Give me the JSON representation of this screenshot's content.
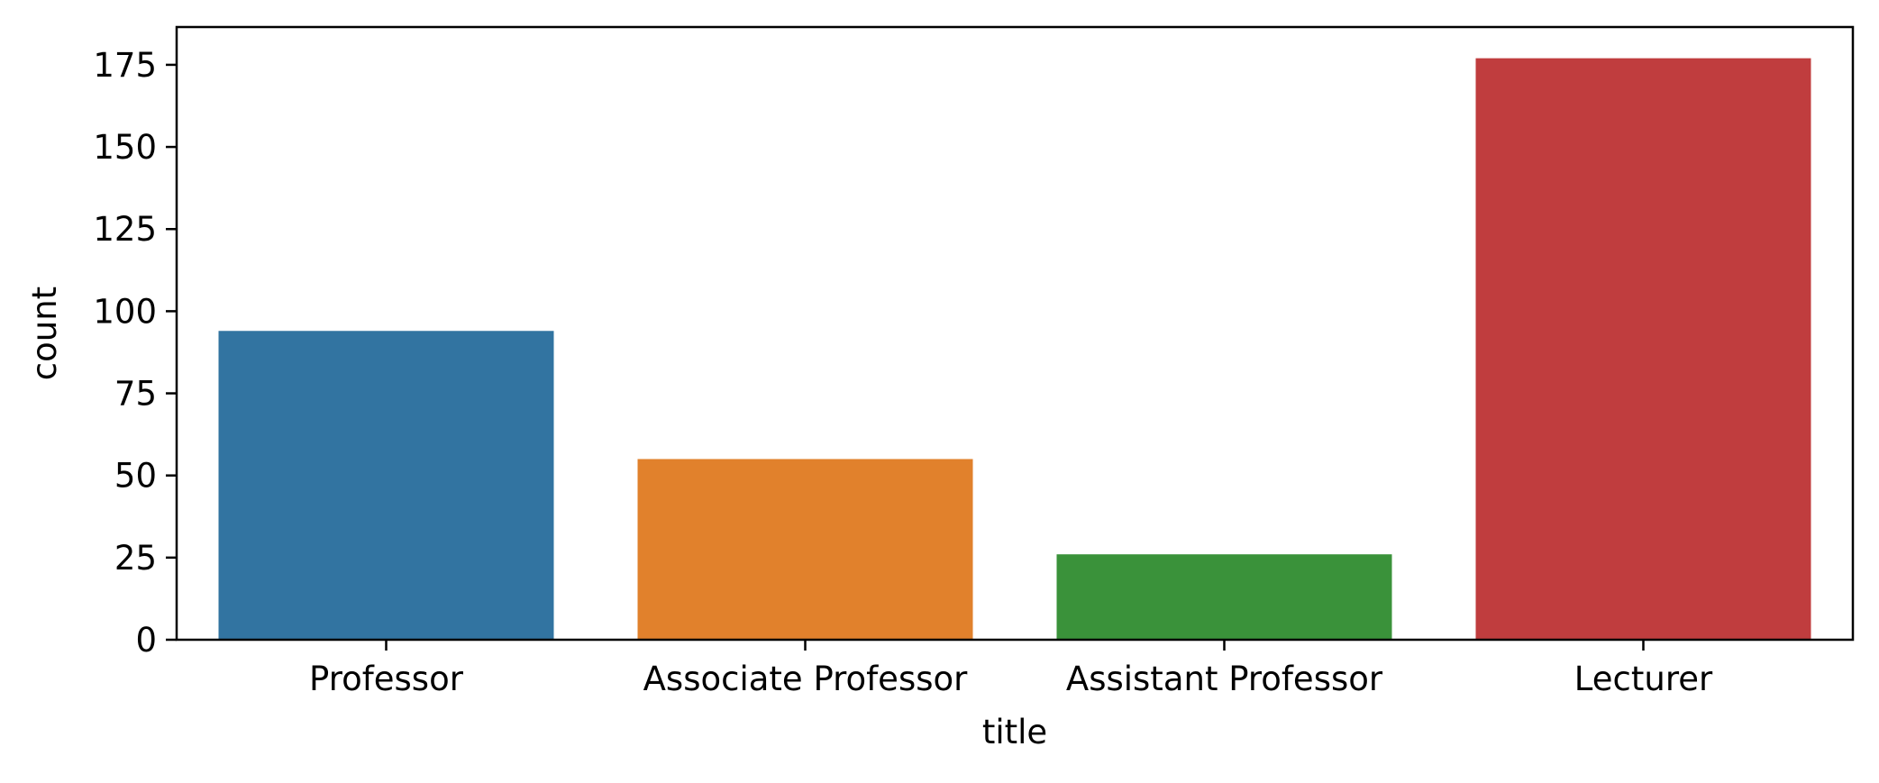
{
  "chart_data": {
    "type": "bar",
    "title": "",
    "xlabel": "title",
    "ylabel": "count",
    "categories": [
      "Professor",
      "Associate Professor",
      "Assistant Professor",
      "Lecturer"
    ],
    "values": [
      94,
      55,
      26,
      177
    ],
    "colors": [
      "#3274a1",
      "#e1812c",
      "#3a923a",
      "#c03d3e"
    ],
    "ylim": [
      0,
      186.5
    ],
    "yticks": [
      0,
      25,
      50,
      75,
      100,
      125,
      150,
      175
    ],
    "grid": false,
    "legend": "none"
  }
}
